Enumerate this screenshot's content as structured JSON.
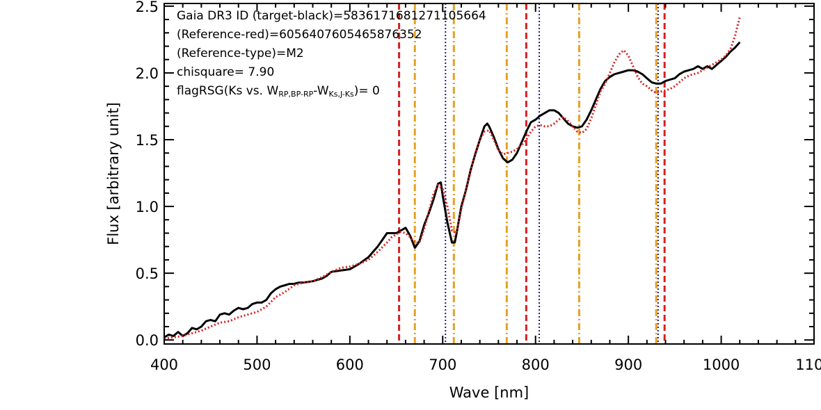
{
  "chart_data": {
    "type": "line",
    "xlabel": "Wave [nm]",
    "ylabel": "Flux [arbitrary unit]",
    "xlim": [
      400,
      1100
    ],
    "ylim": [
      -0.03,
      2.52
    ],
    "x_ticks": [
      400,
      500,
      600,
      700,
      800,
      900,
      1000,
      1100
    ],
    "x_tick_labels": [
      "400",
      "500",
      "600",
      "700",
      "800",
      "900",
      "1000",
      "1100"
    ],
    "y_ticks": [
      0.0,
      0.5,
      1.0,
      1.5,
      2.0,
      2.5
    ],
    "y_tick_labels": [
      "0.0",
      "0.5",
      "1.0",
      "1.5",
      "2.0",
      "2.5"
    ],
    "grid": false,
    "annotations": [
      {
        "text": "Gaia DR3 ID (target-black)=5836171681271105664"
      },
      {
        "text": "(Reference-red)=6056407605465876352"
      },
      {
        "text": "(Reference-type)=M2"
      },
      {
        "text": "chisquare= 7.90"
      },
      {
        "text_parts": [
          "flagRSG(Ks vs. W",
          "RP,BP-RP",
          "-W",
          "Ks,J-Ks",
          ")= 0"
        ]
      }
    ],
    "series": [
      {
        "color": "#000000",
        "style": "solid",
        "x": [
          400,
          405,
          410,
          415,
          420,
          425,
          430,
          435,
          440,
          445,
          450,
          455,
          460,
          465,
          470,
          475,
          480,
          485,
          490,
          495,
          500,
          505,
          510,
          515,
          520,
          525,
          530,
          535,
          540,
          545,
          550,
          560,
          570,
          575,
          580,
          590,
          600,
          610,
          620,
          625,
          630,
          635,
          640,
          645,
          650,
          655,
          660,
          665,
          670,
          675,
          680,
          685,
          690,
          695,
          698,
          700,
          705,
          710,
          713,
          715,
          720,
          725,
          730,
          735,
          740,
          745,
          748,
          750,
          755,
          760,
          765,
          770,
          775,
          780,
          785,
          790,
          795,
          800,
          805,
          810,
          815,
          820,
          825,
          830,
          835,
          840,
          845,
          850,
          855,
          860,
          865,
          870,
          875,
          880,
          885,
          890,
          895,
          900,
          905,
          910,
          915,
          920,
          925,
          930,
          935,
          940,
          945,
          950,
          955,
          960,
          965,
          970,
          975,
          980,
          985,
          990,
          995,
          1000,
          1005,
          1010,
          1015,
          1020
        ],
        "y": [
          0.02,
          0.04,
          0.03,
          0.06,
          0.03,
          0.05,
          0.09,
          0.08,
          0.1,
          0.14,
          0.15,
          0.14,
          0.19,
          0.2,
          0.19,
          0.22,
          0.24,
          0.23,
          0.24,
          0.27,
          0.28,
          0.28,
          0.3,
          0.35,
          0.38,
          0.4,
          0.41,
          0.42,
          0.42,
          0.43,
          0.43,
          0.44,
          0.46,
          0.48,
          0.51,
          0.52,
          0.53,
          0.57,
          0.62,
          0.66,
          0.7,
          0.75,
          0.8,
          0.8,
          0.8,
          0.82,
          0.84,
          0.78,
          0.69,
          0.74,
          0.86,
          0.95,
          1.05,
          1.17,
          1.18,
          1.08,
          0.88,
          0.73,
          0.73,
          0.8,
          1.0,
          1.12,
          1.27,
          1.39,
          1.5,
          1.6,
          1.62,
          1.6,
          1.52,
          1.43,
          1.36,
          1.33,
          1.35,
          1.4,
          1.48,
          1.56,
          1.63,
          1.65,
          1.68,
          1.7,
          1.72,
          1.72,
          1.7,
          1.66,
          1.62,
          1.6,
          1.59,
          1.6,
          1.65,
          1.72,
          1.8,
          1.88,
          1.94,
          1.97,
          1.99,
          2.0,
          2.01,
          2.02,
          2.02,
          2.01,
          1.99,
          1.96,
          1.93,
          1.92,
          1.92,
          1.94,
          1.95,
          1.96,
          1.99,
          2.01,
          2.02,
          2.03,
          2.05,
          2.03,
          2.05,
          2.03,
          2.06,
          2.09,
          2.12,
          2.16,
          2.19,
          2.23
        ]
      },
      {
        "color": "#d62020",
        "style": "dotted",
        "x": [
          400,
          410,
          420,
          430,
          440,
          450,
          460,
          470,
          480,
          490,
          500,
          510,
          520,
          530,
          540,
          550,
          560,
          570,
          580,
          590,
          600,
          610,
          620,
          630,
          640,
          645,
          650,
          655,
          660,
          665,
          670,
          675,
          680,
          685,
          690,
          695,
          700,
          705,
          710,
          715,
          720,
          725,
          730,
          735,
          740,
          745,
          750,
          755,
          760,
          765,
          770,
          775,
          780,
          785,
          790,
          795,
          800,
          805,
          810,
          815,
          820,
          825,
          830,
          835,
          840,
          845,
          850,
          855,
          860,
          865,
          870,
          875,
          880,
          885,
          890,
          895,
          900,
          905,
          910,
          915,
          920,
          925,
          930,
          935,
          940,
          945,
          950,
          955,
          960,
          965,
          970,
          975,
          980,
          985,
          990,
          995,
          1000,
          1005,
          1010,
          1015,
          1020
        ],
        "y": [
          0.01,
          0.02,
          0.03,
          0.05,
          0.07,
          0.1,
          0.13,
          0.14,
          0.17,
          0.19,
          0.21,
          0.25,
          0.32,
          0.36,
          0.41,
          0.43,
          0.44,
          0.47,
          0.51,
          0.54,
          0.55,
          0.57,
          0.6,
          0.66,
          0.73,
          0.77,
          0.79,
          0.81,
          0.8,
          0.77,
          0.73,
          0.73,
          0.83,
          0.96,
          1.09,
          1.16,
          1.13,
          1.0,
          0.82,
          0.8,
          0.98,
          1.12,
          1.26,
          1.4,
          1.5,
          1.56,
          1.57,
          1.5,
          1.42,
          1.39,
          1.4,
          1.41,
          1.43,
          1.46,
          1.5,
          1.56,
          1.6,
          1.61,
          1.6,
          1.6,
          1.62,
          1.65,
          1.67,
          1.64,
          1.6,
          1.56,
          1.55,
          1.58,
          1.66,
          1.76,
          1.86,
          1.92,
          2.0,
          2.08,
          2.14,
          2.17,
          2.13,
          2.05,
          1.97,
          1.92,
          1.9,
          1.87,
          1.85,
          1.86,
          1.87,
          1.88,
          1.9,
          1.93,
          1.96,
          1.98,
          1.99,
          2.0,
          2.02,
          2.04,
          2.06,
          2.08,
          2.1,
          2.13,
          2.18,
          2.28,
          2.42
        ]
      }
    ],
    "vlines": [
      {
        "x": 653,
        "color": "#d62020",
        "style": "dashed"
      },
      {
        "x": 670,
        "color": "#e8a020",
        "style": "dashdot"
      },
      {
        "x": 703,
        "color": "#1a1a80",
        "style": "dotted"
      },
      {
        "x": 712,
        "color": "#e8a020",
        "style": "dashdot"
      },
      {
        "x": 769,
        "color": "#e8a020",
        "style": "dashdot"
      },
      {
        "x": 790,
        "color": "#d62020",
        "style": "dashed"
      },
      {
        "x": 804,
        "color": "#1a1a80",
        "style": "dotted"
      },
      {
        "x": 847,
        "color": "#e8a020",
        "style": "dashdot"
      },
      {
        "x": 930,
        "color": "#e8a020",
        "style": "dashdot"
      },
      {
        "x": 932,
        "color": "#1a1a80",
        "style": "dotted"
      },
      {
        "x": 939,
        "color": "#d62020",
        "style": "dashed"
      }
    ]
  }
}
